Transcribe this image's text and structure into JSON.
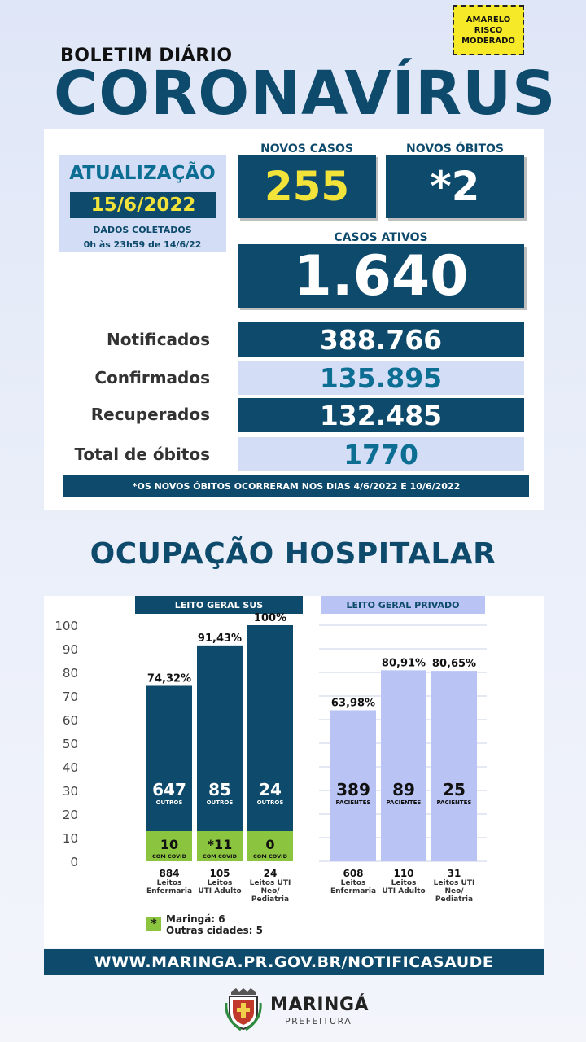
{
  "risk_badge": [
    "AMARELO",
    "RISCO",
    "MODERADO"
  ],
  "header": {
    "bulletin": "BOLETIM DIÁRIO",
    "title": "CORONAVÍRUS"
  },
  "update": {
    "label": "ATUALIZAÇÃO",
    "date": "15/6/2022",
    "collected_label": "DADOS COLETADOS",
    "collected_range": "0h às 23h59 de 14/6/22"
  },
  "stats": {
    "new_cases_label": "NOVOS CASOS",
    "new_cases": "255",
    "new_deaths_label": "NOVOS ÓBITOS",
    "new_deaths": "*2",
    "active_label": "CASOS ATIVOS",
    "active": "1.640",
    "rows": [
      {
        "label": "Notificados",
        "value": "388.766"
      },
      {
        "label": "Confirmados",
        "value": "135.895"
      },
      {
        "label": "Recuperados",
        "value": "132.485"
      },
      {
        "label": "Total de óbitos",
        "value": "1770"
      }
    ],
    "note": "*OS NOVOS ÓBITOS OCORRERAM NOS DIAS 4/6/2022 E 10/6/2022"
  },
  "hospital": {
    "title": "OCUPAÇÃO HOSPITALAR"
  },
  "chart_data": {
    "type": "bar",
    "ylim": [
      0,
      100
    ],
    "yticks": [
      0,
      10,
      20,
      30,
      40,
      50,
      60,
      70,
      80,
      90,
      100
    ],
    "colors": {
      "sus": "#0d4a6b",
      "covid": "#8bc53f",
      "private": "#b9c4f4"
    },
    "groups": [
      {
        "name": "LEITO GERAL SUS",
        "bars": [
          {
            "pct": 74.32,
            "pct_label": "74,32%",
            "main_value": "647",
            "main_label": "OUTROS",
            "covid_value": "10",
            "covid_label": "COM COVID",
            "beds": "884",
            "cat": [
              "Leitos",
              "Enfermaria"
            ]
          },
          {
            "pct": 91.43,
            "pct_label": "91,43%",
            "main_value": "85",
            "main_label": "OUTROS",
            "covid_value": "*11",
            "covid_label": "COM COVID",
            "beds": "105",
            "cat": [
              "Leitos",
              "UTI Adulto"
            ]
          },
          {
            "pct": 100,
            "pct_label": "100%",
            "main_value": "24",
            "main_label": "OUTROS",
            "covid_value": "0",
            "covid_label": "COM COVID",
            "beds": "24",
            "cat": [
              "Leitos UTI",
              "Neo/",
              "Pediatria"
            ]
          }
        ]
      },
      {
        "name": "LEITO GERAL PRIVADO",
        "bars": [
          {
            "pct": 63.98,
            "pct_label": "63,98%",
            "main_value": "389",
            "main_label": "PACIENTES",
            "beds": "608",
            "cat": [
              "Leitos",
              "Enfermaria"
            ]
          },
          {
            "pct": 80.91,
            "pct_label": "80,91%",
            "main_value": "89",
            "main_label": "PACIENTES",
            "beds": "110",
            "cat": [
              "Leitos",
              "UTI Adulto"
            ]
          },
          {
            "pct": 80.65,
            "pct_label": "80,65%",
            "main_value": "25",
            "main_label": "PACIENTES",
            "beds": "31",
            "cat": [
              "Leitos UTI",
              "Neo/",
              "Pediatria"
            ]
          }
        ]
      }
    ]
  },
  "legend": {
    "icon": "asterisk-icon",
    "symbol": "*",
    "line1": "Maringá: 6",
    "line2": "Outras cidades: 5"
  },
  "footer": {
    "url": "WWW.MARINGA.PR.GOV.BR/NOTIFICASAUDE"
  },
  "logo": {
    "name": "MARINGÁ",
    "sub": "PREFEITURA",
    "icon": "city-crest-icon"
  }
}
